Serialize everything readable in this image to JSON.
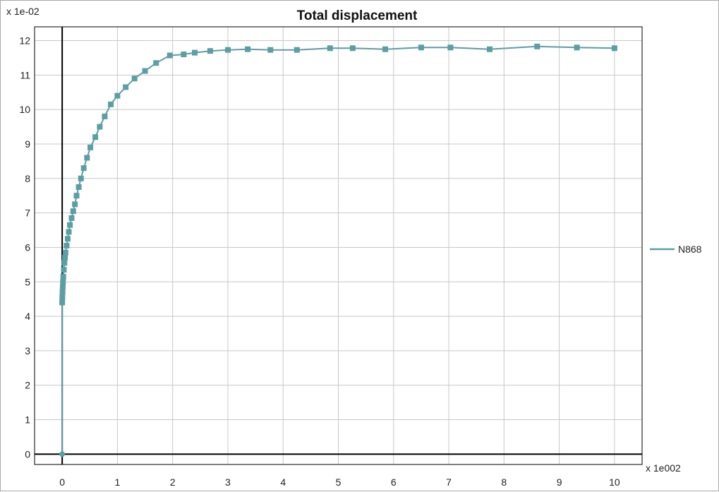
{
  "chart_data": {
    "type": "line",
    "title": "Total displacement",
    "y_multiplier_label": "x 1e-02",
    "x_multiplier_label": "x 1e002",
    "xlim": [
      -0.5,
      10.5
    ],
    "ylim": [
      -0.3,
      12.4
    ],
    "x_ticks": [
      0,
      1,
      2,
      3,
      4,
      5,
      6,
      7,
      8,
      9,
      10
    ],
    "y_ticks": [
      0,
      1,
      2,
      3,
      4,
      5,
      6,
      7,
      8,
      9,
      10,
      11,
      12
    ],
    "grid": true,
    "legend_position": "right",
    "colors": {
      "series": "#5b9ea3",
      "axis_zero": "#000000",
      "grid": "#c8c8c8",
      "frame": "#555555"
    },
    "series": [
      {
        "name": "N868",
        "marker": "square",
        "x": [
          0,
          0,
          0.003,
          0.006,
          0.01,
          0.015,
          0.02,
          0.03,
          0.04,
          0.05,
          0.06,
          0.08,
          0.1,
          0.12,
          0.14,
          0.17,
          0.2,
          0.23,
          0.26,
          0.3,
          0.34,
          0.39,
          0.45,
          0.51,
          0.6,
          0.68,
          0.77,
          0.88,
          1.0,
          1.15,
          1.31,
          1.5,
          1.7,
          1.95,
          2.2,
          2.4,
          2.68,
          3.0,
          3.36,
          3.77,
          4.25,
          4.85,
          5.26,
          5.85,
          6.5,
          7.03,
          7.74,
          8.6,
          9.32,
          10.0
        ],
        "y": [
          0,
          4.4,
          4.55,
          4.7,
          4.85,
          5.0,
          5.15,
          5.35,
          5.55,
          5.7,
          5.85,
          6.05,
          6.25,
          6.45,
          6.65,
          6.85,
          7.05,
          7.25,
          7.5,
          7.75,
          8.0,
          8.3,
          8.6,
          8.9,
          9.2,
          9.5,
          9.8,
          10.15,
          10.4,
          10.65,
          10.9,
          11.12,
          11.35,
          11.57,
          11.6,
          11.65,
          11.7,
          11.73,
          11.75,
          11.73,
          11.73,
          11.78,
          11.78,
          11.75,
          11.8,
          11.8,
          11.75,
          11.83,
          11.8,
          11.78
        ]
      }
    ]
  }
}
